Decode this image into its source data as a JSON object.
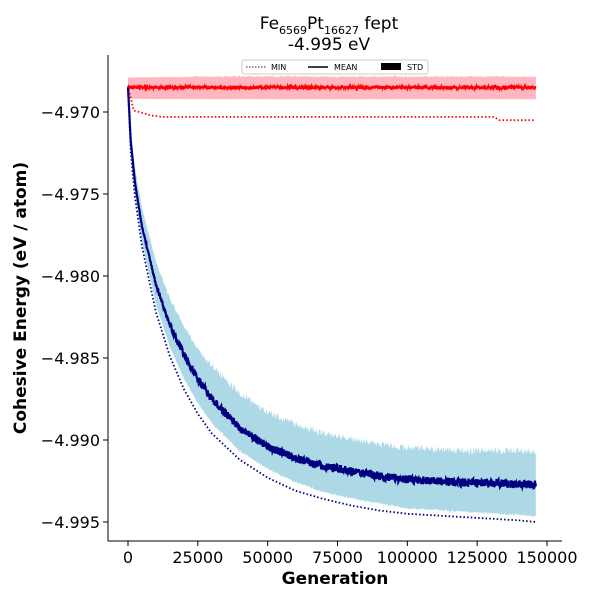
{
  "chart_data": {
    "type": "line",
    "title": {
      "fe": "Fe",
      "fe_sub": "6569",
      "pt": "Pt",
      "pt_sub": "16627",
      "suffix": " fept",
      "line2": "-4.995 eV"
    },
    "xlabel": "Generation",
    "ylabel": "Cohesive Energy (eV / atom)",
    "xlim": [
      -4000,
      152000
    ],
    "ylim": [
      -4.9964,
      -4.9669
    ],
    "x_ticks": [
      0,
      25000,
      50000,
      75000,
      100000,
      125000,
      150000
    ],
    "x_tick_labels": [
      "0",
      "25000",
      "50000",
      "75000",
      "100000",
      "125000",
      "150000"
    ],
    "y_ticks": [
      -4.97,
      -4.975,
      -4.98,
      -4.985,
      -4.99,
      -4.995
    ],
    "y_tick_labels": [
      "−4.970",
      "−4.975",
      "−4.980",
      "−4.985",
      "−4.990",
      "−4.995"
    ],
    "grid": false,
    "legend": {
      "placement": "top-center",
      "entries": [
        {
          "label": "MIN",
          "style": "dotted"
        },
        {
          "label": "MEAN",
          "style": "solid"
        },
        {
          "label": "STD",
          "style": "band"
        }
      ]
    },
    "series": [
      {
        "color_line": "#ff0000",
        "color_band": "#ffb6c1",
        "min": {
          "x": [
            0,
            2000,
            4000,
            6000,
            8000,
            12000,
            50000,
            100000,
            131000,
            133000,
            146000
          ],
          "y": [
            -4.9684,
            -4.9699,
            -4.97,
            -4.9701,
            -4.9702,
            -4.9703,
            -4.9703,
            -4.9703,
            -4.9703,
            -4.9705,
            -4.9705
          ]
        },
        "mean": {
          "x": [
            0,
            146000
          ],
          "y": [
            -4.9685,
            -4.9685
          ]
        },
        "std": {
          "x": [
            0,
            146000
          ],
          "low": [
            -4.9692,
            -4.9692
          ],
          "high": [
            -4.9679,
            -4.9679
          ]
        }
      },
      {
        "color_line": "#000080",
        "color_band": "#add8e6",
        "min": {
          "x": [
            0,
            1000,
            2500,
            5000,
            10000,
            15000,
            20000,
            25000,
            30000,
            40000,
            50000,
            60000,
            70000,
            80000,
            90000,
            100000,
            110000,
            120000,
            130000,
            140000,
            146000
          ],
          "y": [
            -4.9686,
            -4.9725,
            -4.9752,
            -4.9782,
            -4.9822,
            -4.9849,
            -4.9869,
            -4.9884,
            -4.9896,
            -4.9912,
            -4.9923,
            -4.9931,
            -4.9936,
            -4.994,
            -4.9943,
            -4.9945,
            -4.9946,
            -4.9947,
            -4.9948,
            -4.9949,
            -4.995
          ]
        },
        "mean": {
          "x": [
            0,
            1000,
            2500,
            5000,
            10000,
            15000,
            20000,
            25000,
            30000,
            40000,
            50000,
            60000,
            70000,
            80000,
            90000,
            100000,
            110000,
            120000,
            130000,
            140000,
            146000
          ],
          "y": [
            -4.9685,
            -4.9718,
            -4.9743,
            -4.977,
            -4.9805,
            -4.983,
            -4.9848,
            -4.9863,
            -4.9875,
            -4.9893,
            -4.9904,
            -4.9911,
            -4.9916,
            -4.9919,
            -4.9922,
            -4.9924,
            -4.9925,
            -4.9926,
            -4.9926,
            -4.9927,
            -4.9927
          ]
        },
        "std": {
          "x": [
            0,
            1000,
            2500,
            5000,
            10000,
            15000,
            20000,
            25000,
            30000,
            40000,
            50000,
            60000,
            70000,
            80000,
            90000,
            100000,
            110000,
            120000,
            130000,
            140000,
            146000
          ],
          "low": [
            -4.9686,
            -4.9723,
            -4.975,
            -4.9779,
            -4.9817,
            -4.9843,
            -4.9862,
            -4.9877,
            -4.9889,
            -4.9906,
            -4.9917,
            -4.9925,
            -4.9931,
            -4.9935,
            -4.9938,
            -4.9941,
            -4.9942,
            -4.9943,
            -4.9944,
            -4.9945,
            -4.9946
          ],
          "high": [
            -4.9684,
            -4.9712,
            -4.9734,
            -4.9759,
            -4.9792,
            -4.9815,
            -4.9832,
            -4.9846,
            -4.9857,
            -4.9874,
            -4.9885,
            -4.9893,
            -4.9898,
            -4.9902,
            -4.9905,
            -4.9907,
            -4.9908,
            -4.9909,
            -4.9909,
            -4.9909,
            -4.9909
          ]
        }
      }
    ]
  }
}
